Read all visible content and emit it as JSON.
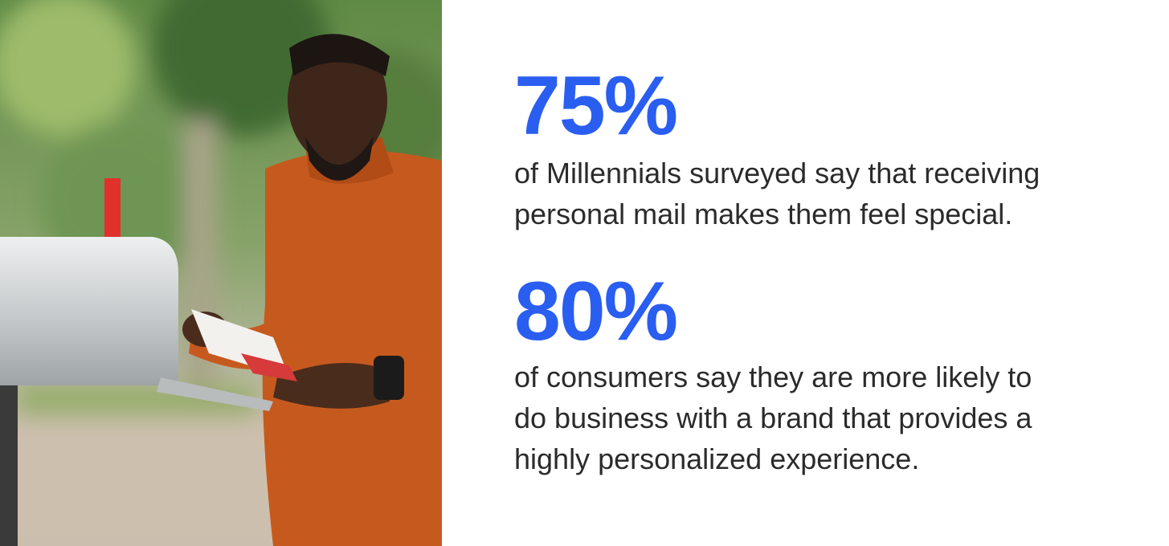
{
  "accent_color": "#2a5ef0",
  "photo": {
    "description_icon": "man-checking-mailbox-photo"
  },
  "stats": [
    {
      "value": "75%",
      "lines": [
        "of Millennials surveyed say that receiving",
        "personal mail makes them feel special."
      ]
    },
    {
      "value": "80%",
      "lines": [
        "of consumers say they are more likely to",
        "do business with a brand that provides a",
        "highly personalized experience."
      ]
    }
  ]
}
